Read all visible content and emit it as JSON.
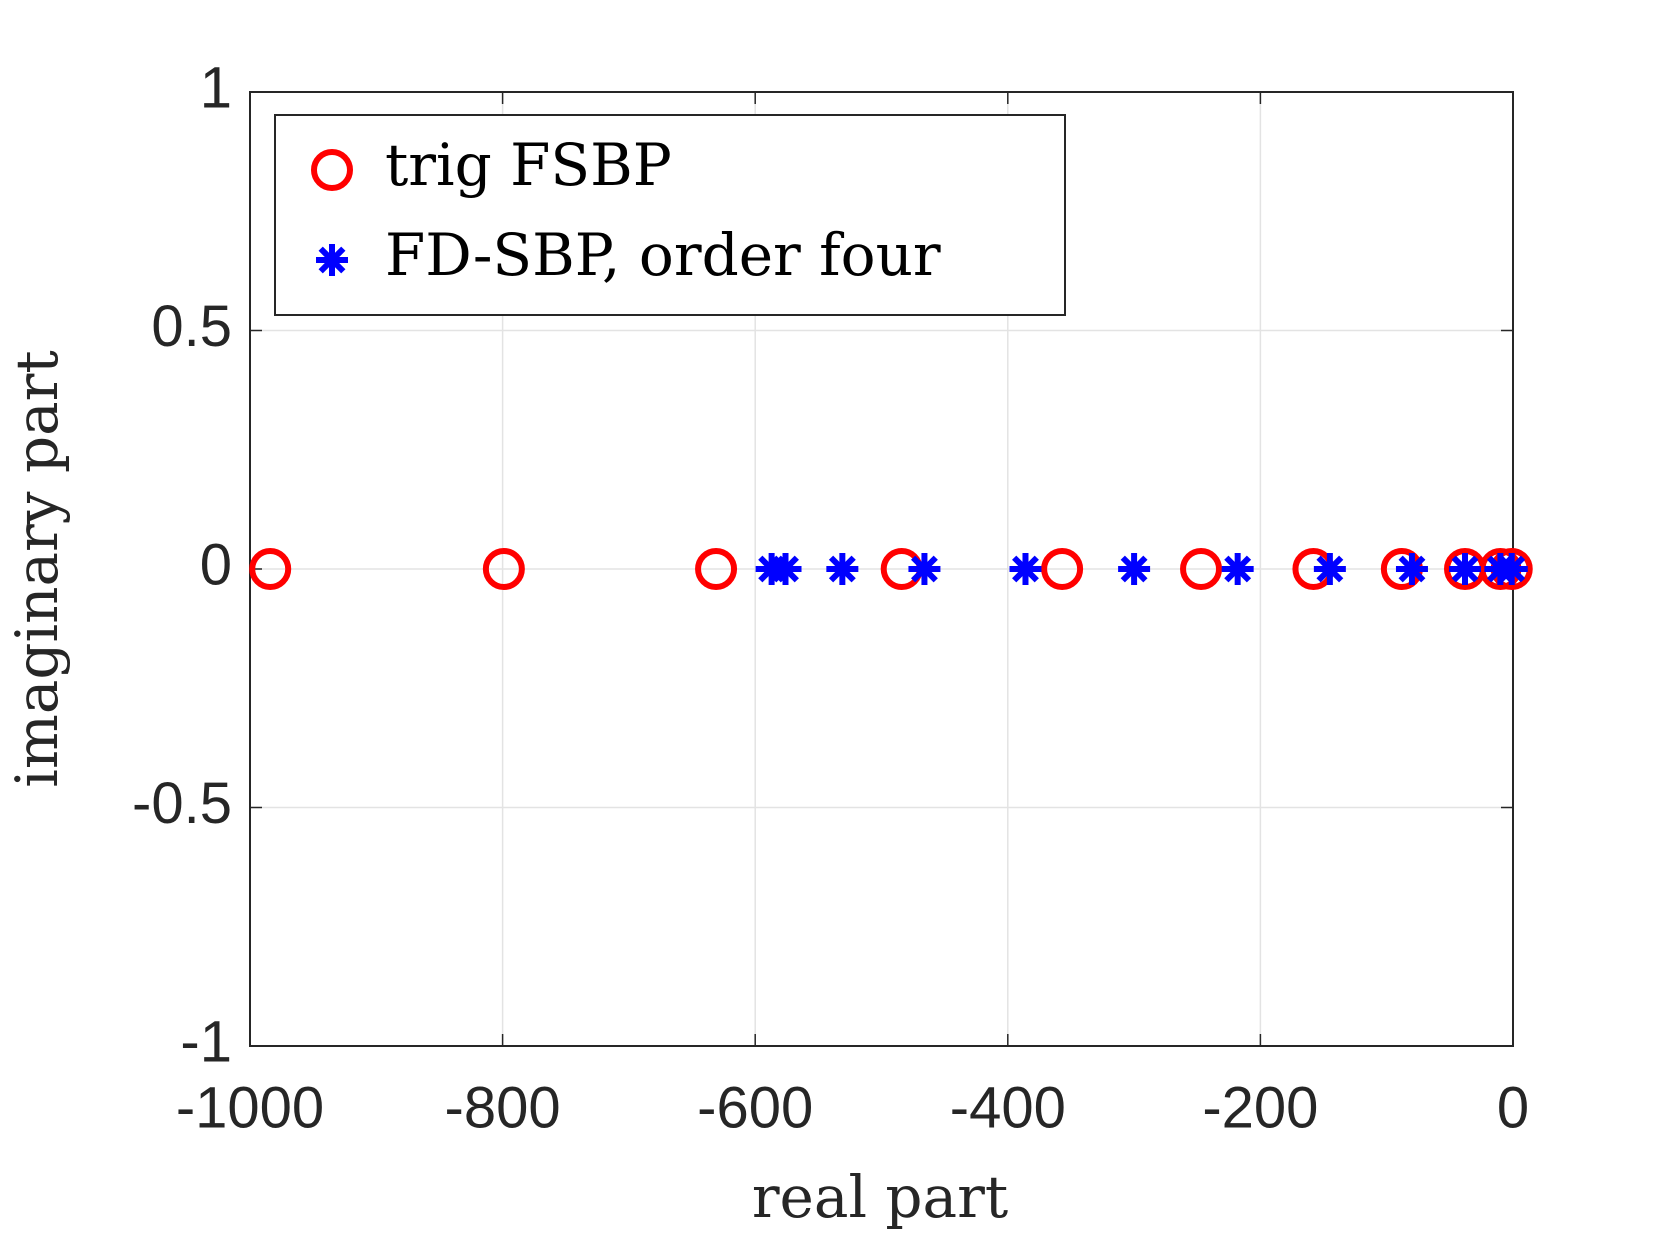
{
  "chart_data": {
    "type": "scatter",
    "xlabel": "real part",
    "ylabel": "imaginary part",
    "xlim": [
      -1000,
      0
    ],
    "ylim": [
      -1,
      1
    ],
    "xticks": [
      -1000,
      -800,
      -600,
      -400,
      -200,
      0
    ],
    "yticks": [
      -1,
      -0.5,
      0,
      0.5,
      1
    ],
    "grid": true,
    "legend": "upper left",
    "series": [
      {
        "name": "trig FSBP",
        "color": "#ff0000",
        "marker": "circle",
        "x": [
          -984,
          -799,
          -631,
          -484,
          -357,
          -247,
          -158,
          -88,
          -38,
          -10,
          -1
        ],
        "values": [
          0,
          0,
          0,
          0,
          0,
          0,
          0,
          0,
          0,
          0,
          0
        ]
      },
      {
        "name": "FD-SBP, order four",
        "color": "#0000ff",
        "marker": "star",
        "x": [
          -587,
          -576,
          -531,
          -466,
          -386,
          -300,
          -218,
          -145,
          -80,
          -38,
          -10,
          -1
        ],
        "values": [
          0,
          0,
          0,
          0,
          0,
          0,
          0,
          0,
          0,
          0,
          0,
          0
        ]
      }
    ]
  }
}
